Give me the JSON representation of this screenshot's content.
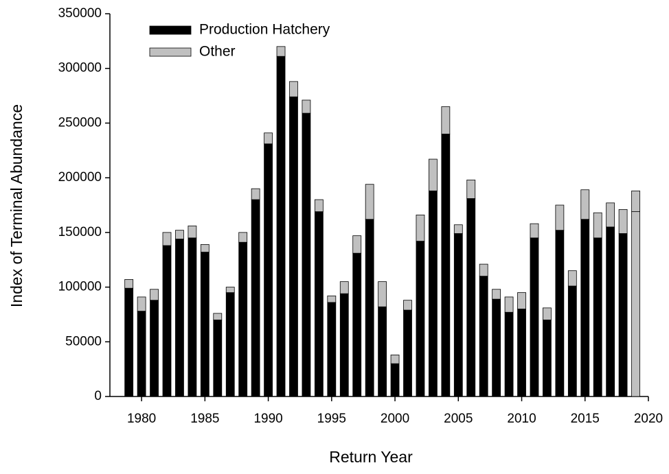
{
  "chart_data": {
    "type": "stacked_bar",
    "x_label": "Return Year",
    "y_label": "Index of Terminal Abundance",
    "x": [
      1979,
      1980,
      1981,
      1982,
      1983,
      1984,
      1985,
      1986,
      1987,
      1988,
      1989,
      1990,
      1991,
      1992,
      1993,
      1994,
      1995,
      1996,
      1997,
      1998,
      1999,
      2000,
      2001,
      2002,
      2003,
      2004,
      2005,
      2006,
      2007,
      2008,
      2009,
      2010,
      2011,
      2012,
      2013,
      2014,
      2015,
      2016,
      2017,
      2018,
      2019
    ],
    "series": [
      {
        "name": "Production Hatchery",
        "color": "#000000",
        "colors": [
          "#000000",
          "#000000",
          "#000000",
          "#000000",
          "#000000",
          "#000000",
          "#000000",
          "#000000",
          "#000000",
          "#000000",
          "#000000",
          "#000000",
          "#000000",
          "#000000",
          "#000000",
          "#000000",
          "#000000",
          "#000000",
          "#000000",
          "#000000",
          "#000000",
          "#000000",
          "#000000",
          "#000000",
          "#000000",
          "#000000",
          "#000000",
          "#000000",
          "#000000",
          "#000000",
          "#000000",
          "#000000",
          "#000000",
          "#000000",
          "#000000",
          "#000000",
          "#000000",
          "#000000",
          "#000000",
          "#000000",
          "#c0c0c0"
        ],
        "values": [
          99000,
          78000,
          88000,
          138000,
          144000,
          145000,
          132000,
          70000,
          95000,
          141000,
          180000,
          231000,
          311000,
          274000,
          259000,
          169000,
          86000,
          94000,
          131000,
          162000,
          82000,
          30000,
          79000,
          142000,
          188000,
          240000,
          149000,
          181000,
          110000,
          89000,
          77000,
          80000,
          145000,
          70000,
          152000,
          101000,
          162000,
          145000,
          155000,
          149000,
          169000
        ]
      },
      {
        "name": "Other",
        "color": "#c0c0c0",
        "values": [
          8000,
          13000,
          10000,
          12000,
          8000,
          11000,
          7000,
          6000,
          5000,
          9000,
          10000,
          10000,
          9000,
          14000,
          12000,
          11000,
          6000,
          11000,
          16000,
          32000,
          23000,
          8000,
          9000,
          24000,
          29000,
          25000,
          8000,
          17000,
          11000,
          9000,
          14000,
          15000,
          13000,
          11000,
          23000,
          14000,
          27000,
          23000,
          22000,
          22000,
          19000
        ]
      }
    ],
    "xlim": [
      1977.5,
      2020
    ],
    "xticks": [
      1980,
      1985,
      1990,
      1995,
      2000,
      2005,
      2010,
      2015,
      2020
    ],
    "ylim": [
      0,
      350000
    ],
    "yticks": [
      0,
      50000,
      100000,
      150000,
      200000,
      250000,
      300000,
      350000
    ],
    "legend": "top-left"
  }
}
